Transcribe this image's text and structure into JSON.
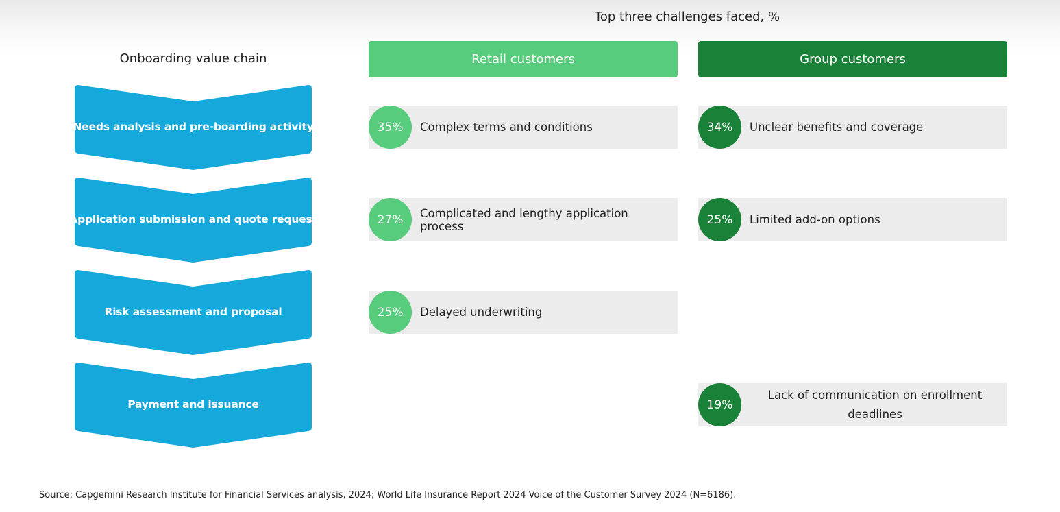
{
  "title": "Top three challenges faced, %",
  "value_chain": {
    "title": "Onboarding value chain",
    "color": "#14a8db",
    "steps": [
      "Needs analysis and pre-boarding activity",
      "Application submission and quote request",
      "Risk assessment and proposal",
      "Payment and issuance"
    ]
  },
  "retail": {
    "header": "Retail customers",
    "color": "#57cc7d",
    "challenges": [
      {
        "pct": "35%",
        "text": "Complex terms and conditions"
      },
      {
        "pct": "27%",
        "text": "Complicated and lengthy application process"
      },
      {
        "pct": "25%",
        "text": "Delayed underwriting"
      }
    ]
  },
  "group": {
    "header": "Group customers",
    "color": "#1a8238",
    "challenges": [
      {
        "pct": "34%",
        "text": "Unclear benefits and coverage"
      },
      {
        "pct": "25%",
        "text": "Limited add-on options"
      },
      {
        "pct": "19%",
        "text": "Lack of communication on enrollment deadlines"
      }
    ]
  },
  "source": "Source: Capgemini Research Institute for Financial Services analysis, 2024; World Life Insurance Report 2024 Voice of the Customer Survey 2024 (N=6186)."
}
